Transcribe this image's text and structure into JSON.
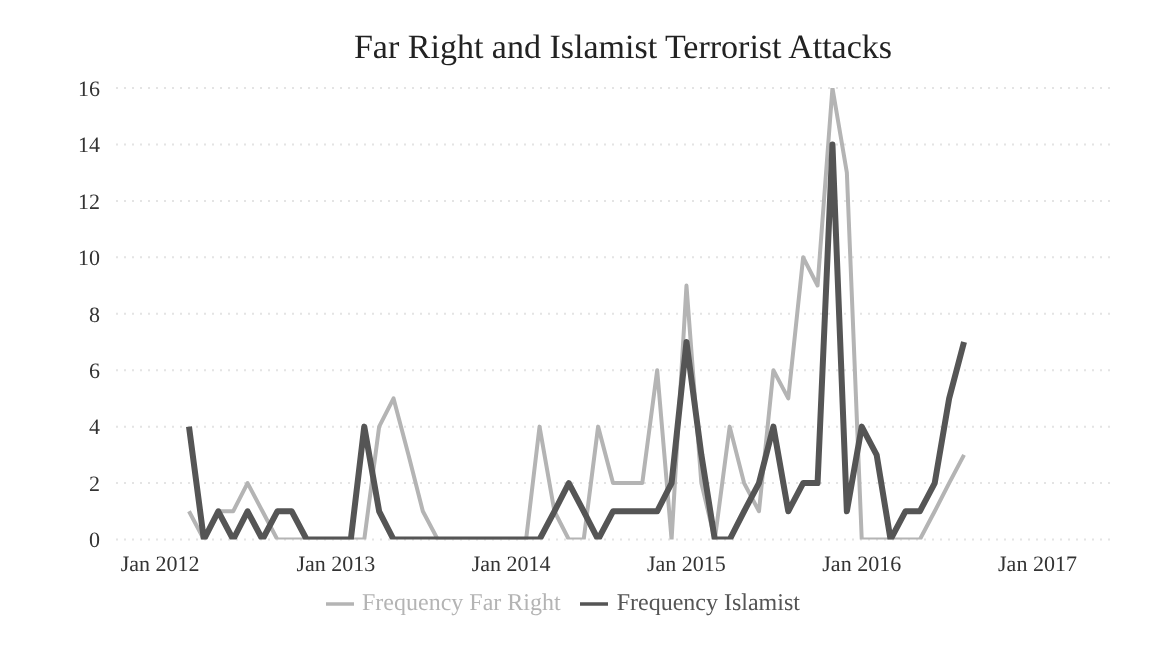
{
  "chart_data": {
    "type": "line",
    "title": "Far Right and Islamist Terrorist Attacks",
    "x": [
      "2012-03",
      "2012-04",
      "2012-05",
      "2012-06",
      "2012-07",
      "2012-08",
      "2012-09",
      "2012-10",
      "2012-11",
      "2012-12",
      "2013-01",
      "2013-02",
      "2013-03",
      "2013-04",
      "2013-05",
      "2013-06",
      "2013-07",
      "2013-08",
      "2013-09",
      "2013-10",
      "2013-11",
      "2013-12",
      "2014-01",
      "2014-02",
      "2014-03",
      "2014-04",
      "2014-05",
      "2014-06",
      "2014-07",
      "2014-08",
      "2014-09",
      "2014-10",
      "2014-11",
      "2014-12",
      "2015-01",
      "2015-02",
      "2015-03",
      "2015-04",
      "2015-05",
      "2015-06",
      "2015-07",
      "2015-08",
      "2015-09",
      "2015-10",
      "2015-11",
      "2015-12",
      "2016-01",
      "2016-02",
      "2016-03",
      "2016-04",
      "2016-05",
      "2016-06",
      "2016-07",
      "2016-08"
    ],
    "series": [
      {
        "name": "Frequency Far Right",
        "color": "#b4b4b4",
        "values": [
          1,
          0,
          1,
          1,
          2,
          1,
          0,
          0,
          0,
          0,
          0,
          0,
          0,
          4,
          5,
          3,
          1,
          0,
          0,
          0,
          0,
          0,
          0,
          0,
          4,
          1,
          0,
          0,
          4,
          2,
          2,
          2,
          6,
          0,
          9,
          2,
          0,
          4,
          2,
          1,
          6,
          5,
          10,
          9,
          16,
          13,
          0,
          0,
          0,
          0,
          0,
          1,
          2,
          3
        ]
      },
      {
        "name": "Frequency Islamist",
        "color": "#555555",
        "values": [
          4,
          0,
          1,
          0,
          1,
          0,
          1,
          1,
          0,
          0,
          0,
          0,
          4,
          1,
          0,
          0,
          0,
          0,
          0,
          0,
          0,
          0,
          0,
          0,
          0,
          1,
          2,
          1,
          0,
          1,
          1,
          1,
          1,
          2,
          7,
          3,
          0,
          0,
          1,
          2,
          4,
          1,
          2,
          2,
          14,
          1,
          4,
          3,
          0,
          1,
          1,
          2,
          5,
          7
        ]
      }
    ],
    "xlim": [
      "2011-10",
      "2017-06"
    ],
    "xticks": [
      {
        "value": "2012-01",
        "label": "Jan 2012"
      },
      {
        "value": "2013-01",
        "label": "Jan 2013"
      },
      {
        "value": "2014-01",
        "label": "Jan 2014"
      },
      {
        "value": "2015-01",
        "label": "Jan 2015"
      },
      {
        "value": "2016-01",
        "label": "Jan 2016"
      },
      {
        "value": "2017-01",
        "label": "Jan 2017"
      }
    ],
    "ylim": [
      0,
      16
    ],
    "yticks": [
      0,
      2,
      4,
      6,
      8,
      10,
      12,
      14,
      16
    ],
    "grid": "y",
    "legend": "bottom",
    "marker": "none",
    "line_style": "solid"
  }
}
